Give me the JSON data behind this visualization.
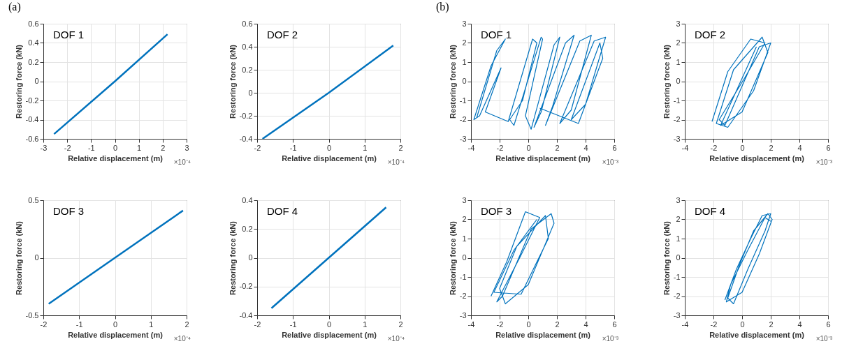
{
  "chart_data": [
    {
      "type": "line",
      "annotations": [
        "DOF 1",
        "×10⁻⁴",
        "(a)"
      ],
      "xlabel": "Relative displacement (m)",
      "ylabel": "Restoring force (kN)",
      "xlim": [
        -3,
        3
      ],
      "xticks": [
        -3,
        -2,
        -1,
        0,
        1,
        2,
        3
      ],
      "ylim": [
        -0.6,
        0.6
      ],
      "yticks": [
        -0.6,
        -0.4,
        -0.2,
        0,
        0.2,
        0.4,
        0.6
      ],
      "grid": true,
      "color": "#0072bd",
      "x": [
        -2.55,
        0,
        2.2
      ],
      "values": [
        -0.55,
        0,
        0.49
      ]
    },
    {
      "type": "line",
      "annotations": [
        "DOF 2",
        "×10⁻⁴"
      ],
      "xlabel": "Relative displacement (m)",
      "ylabel": "Restoring force (kN)",
      "xlim": [
        -2,
        2
      ],
      "xticks": [
        -2,
        -1,
        0,
        1,
        2
      ],
      "ylim": [
        -0.4,
        0.6
      ],
      "yticks": [
        -0.4,
        -0.2,
        0,
        0.2,
        0.4,
        0.6
      ],
      "grid": true,
      "color": "#0072bd",
      "x": [
        -1.85,
        0,
        1.8
      ],
      "values": [
        -0.4,
        0,
        0.41
      ]
    },
    {
      "type": "line",
      "annotations": [
        "DOF 1",
        "×10⁻³",
        "(b)"
      ],
      "xlabel": "Relative displacement (m)",
      "ylabel": "Restoring force (kN)",
      "xlim": [
        -4,
        6
      ],
      "xticks": [
        -4,
        -2,
        0,
        2,
        4,
        6
      ],
      "ylim": [
        -3,
        3
      ],
      "yticks": [
        -3,
        -2,
        -1,
        0,
        1,
        2,
        3
      ],
      "grid": true,
      "color": "#0072bd",
      "x": [
        -3.6,
        -2.2,
        -1.6,
        -2.6,
        -3.8,
        -3.4,
        -1.9,
        -3.0,
        -1.4,
        0.3,
        0.6,
        -0.4,
        -1.3,
        -1.0,
        0.9,
        1.0,
        -0.2,
        0.2,
        1.8,
        2.2,
        0.9,
        0.4,
        2.6,
        3.2,
        1.7,
        1.2,
        3.6,
        4.4,
        3.0,
        2.2,
        4.6,
        5.4,
        4.0,
        3.0,
        5.0,
        5.2,
        3.5,
        0.8
      ],
      "values": [
        -1.9,
        1.6,
        2.2,
        0.8,
        -2.0,
        -1.8,
        0.7,
        -1.6,
        -2.1,
        2.2,
        2.0,
        -1.0,
        -2.0,
        -2.3,
        2.3,
        2.2,
        -1.8,
        -2.5,
        1.9,
        2.3,
        -1.6,
        -2.4,
        2.0,
        2.4,
        -1.3,
        -2.3,
        2.1,
        2.4,
        -1.5,
        -2.2,
        2.1,
        2.3,
        -1.2,
        -2.0,
        2.0,
        1.2,
        -2.2,
        -1.4
      ]
    },
    {
      "type": "line",
      "annotations": [
        "DOF 2",
        "×10⁻³"
      ],
      "xlabel": "Relative displacement (m)",
      "ylabel": "Restoring force (kN)",
      "xlim": [
        -4,
        6
      ],
      "xticks": [
        -4,
        -2,
        0,
        2,
        4,
        6
      ],
      "ylim": [
        -3,
        3
      ],
      "yticks": [
        -3,
        -2,
        -1,
        0,
        1,
        2,
        3
      ],
      "grid": true,
      "color": "#0072bd",
      "x": [
        -2.1,
        -1.0,
        0.6,
        1.6,
        0.2,
        -1.6,
        -1.2,
        1.2,
        2.0,
        0.8,
        -1.0,
        -1.8,
        -0.6,
        1.4,
        1.8,
        0.0,
        -1.5,
        -0.4,
        1.0
      ],
      "values": [
        -2.1,
        0.5,
        2.2,
        2.0,
        0.2,
        -2.0,
        -2.3,
        1.8,
        2.0,
        -0.5,
        -2.4,
        -2.2,
        0.6,
        2.3,
        1.5,
        -1.6,
        -2.3,
        -0.5,
        1.8
      ]
    },
    {
      "type": "line",
      "annotations": [
        "DOF 3",
        "×10⁻⁴"
      ],
      "xlabel": "Relative displacement (m)",
      "ylabel": "Restoring force (kN)",
      "xlim": [
        -2,
        2
      ],
      "xticks": [
        -2,
        -1,
        0,
        1,
        2
      ],
      "ylim": [
        -0.5,
        0.5
      ],
      "yticks": [
        -0.5,
        0,
        0.5
      ],
      "grid": true,
      "color": "#0072bd",
      "x": [
        -1.85,
        0,
        1.9
      ],
      "values": [
        -0.4,
        0,
        0.41
      ]
    },
    {
      "type": "line",
      "annotations": [
        "DOF 4",
        "×10⁻⁴"
      ],
      "xlabel": "Relative displacement (m)",
      "ylabel": "Restoring force (kN)",
      "xlim": [
        -2,
        2
      ],
      "xticks": [
        -2,
        -1,
        0,
        1,
        2
      ],
      "ylim": [
        -0.4,
        0.4
      ],
      "yticks": [
        -0.4,
        -0.2,
        0,
        0.2,
        0.4
      ],
      "grid": true,
      "color": "#0072bd",
      "x": [
        -1.6,
        0,
        1.6
      ],
      "values": [
        -0.35,
        0,
        0.35
      ]
    },
    {
      "type": "line",
      "annotations": [
        "DOF 3",
        "×10⁻³"
      ],
      "xlabel": "Relative displacement (m)",
      "ylabel": "Restoring force (kN)",
      "xlim": [
        -4,
        6
      ],
      "xticks": [
        -4,
        -2,
        0,
        2,
        4,
        6
      ],
      "ylim": [
        -3,
        3
      ],
      "yticks": [
        -3,
        -2,
        -1,
        0,
        1,
        2,
        3
      ],
      "grid": true,
      "color": "#0072bd",
      "x": [
        -2.6,
        -1.5,
        -0.2,
        0.8,
        -0.6,
        -2.2,
        -1.8,
        0.2,
        1.6,
        1.8,
        0.0,
        -1.6,
        -2.0,
        -0.8,
        1.2,
        1.4,
        -0.5,
        -2.4,
        -1.0,
        0.6
      ],
      "values": [
        -2.0,
        -0.2,
        2.4,
        2.1,
        0.0,
        -2.3,
        -2.0,
        1.5,
        2.3,
        1.8,
        -1.4,
        -2.4,
        -1.6,
        0.6,
        2.2,
        1.0,
        -1.9,
        -1.8,
        0.4,
        2.0
      ]
    },
    {
      "type": "line",
      "annotations": [
        "DOF 4",
        "×10⁻³"
      ],
      "xlabel": "Relative displacement (m)",
      "ylabel": "Restoring force (kN)",
      "xlim": [
        -4,
        6
      ],
      "xticks": [
        -4,
        -2,
        0,
        2,
        4,
        6
      ],
      "ylim": [
        -3,
        3
      ],
      "yticks": [
        -3,
        -2,
        -1,
        0,
        1,
        2,
        3
      ],
      "grid": true,
      "color": "#0072bd",
      "x": [
        -1.2,
        -0.4,
        0.6,
        1.4,
        2.0,
        1.6,
        0.4,
        -0.6,
        -1.0,
        -0.2,
        0.8,
        1.8,
        2.1,
        1.2,
        0.0,
        -1.1,
        -0.8,
        0.4,
        1.6,
        2.0
      ],
      "values": [
        -2.2,
        -0.6,
        1.0,
        2.2,
        2.3,
        1.4,
        -0.6,
        -2.4,
        -2.1,
        -0.4,
        1.4,
        2.3,
        2.0,
        0.2,
        -1.8,
        -2.3,
        -1.4,
        0.4,
        2.1,
        1.9
      ]
    }
  ]
}
